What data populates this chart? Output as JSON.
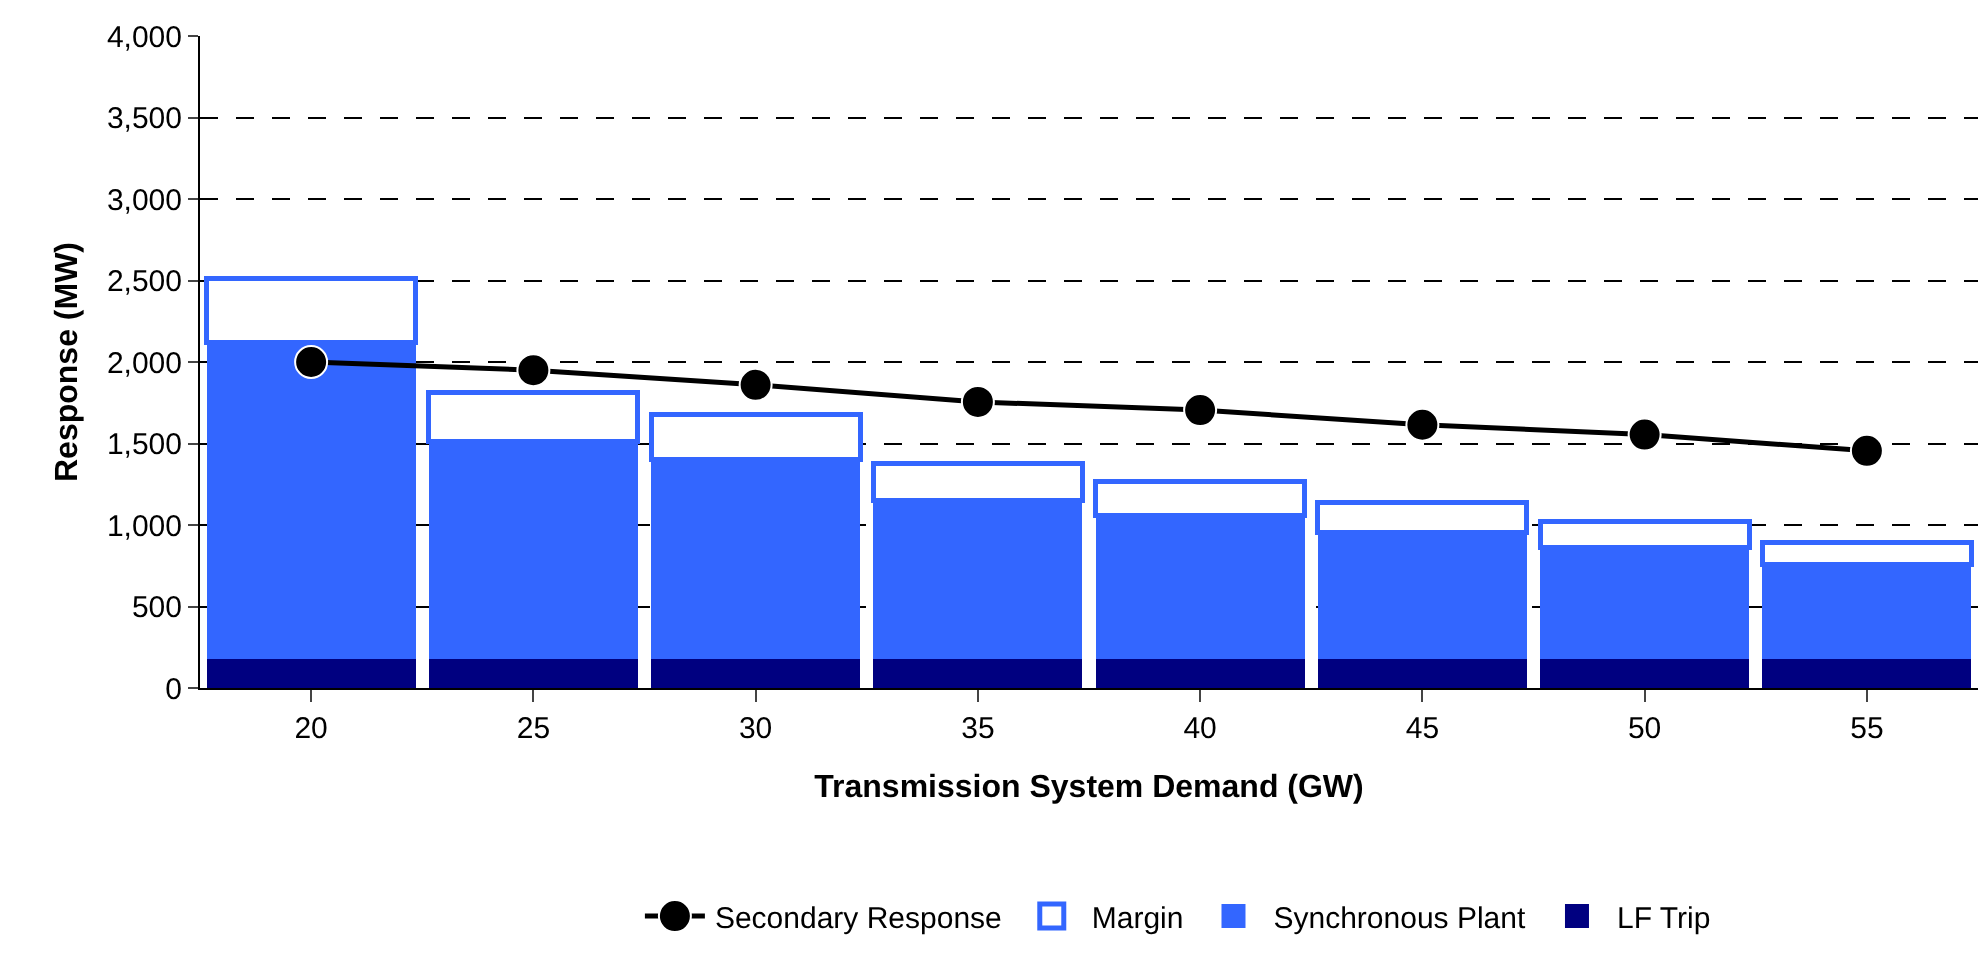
{
  "chart_data": {
    "type": "bar",
    "stacked": true,
    "xlabel": "Transmission System Demand (GW)",
    "ylabel": "Response (MW)",
    "categories": [
      "20",
      "25",
      "30",
      "35",
      "40",
      "45",
      "50",
      "55"
    ],
    "series": [
      {
        "name": "LF Trip",
        "color": "#000080",
        "values": [
          175,
          175,
          175,
          175,
          175,
          175,
          175,
          175
        ]
      },
      {
        "name": "Synchronous Plant",
        "color": "#3366ff",
        "values": [
          1945,
          1335,
          1225,
          975,
          885,
          780,
          690,
          585
        ]
      },
      {
        "name": "Margin",
        "color": "#ffffff",
        "values": [
          390,
          300,
          280,
          230,
          210,
          185,
          155,
          135
        ]
      },
      {
        "name": "Secondary Response",
        "type": "line",
        "color": "#000000",
        "marker": "circle",
        "values": [
          2000,
          1950,
          1860,
          1755,
          1705,
          1615,
          1555,
          1455
        ]
      }
    ],
    "ylim": [
      0,
      4000
    ],
    "yticks": [
      {
        "value": 0,
        "label": "0"
      },
      {
        "value": 500,
        "label": "500"
      },
      {
        "value": 1000,
        "label": "1,000"
      },
      {
        "value": 1500,
        "label": "1,500"
      },
      {
        "value": 2000,
        "label": "2,000"
      },
      {
        "value": 2500,
        "label": "2,500"
      },
      {
        "value": 3000,
        "label": "3,000"
      },
      {
        "value": 3500,
        "label": "3,500"
      },
      {
        "value": 4000,
        "label": "4,000"
      }
    ],
    "grid": "y",
    "legend": "bottom"
  }
}
